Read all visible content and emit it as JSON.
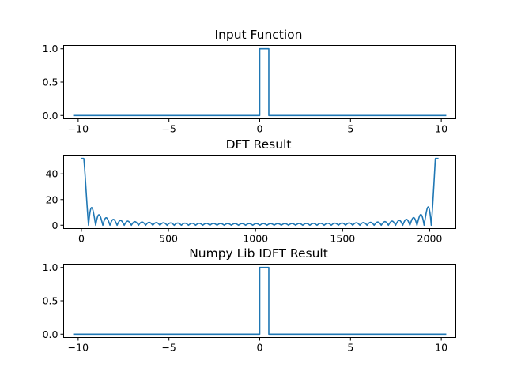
{
  "chart_data": [
    {
      "type": "line",
      "title": "Input Function",
      "xlabel": "",
      "ylabel": "",
      "xlim": [
        -10.8,
        10.8
      ],
      "ylim": [
        -0.05,
        1.05
      ],
      "xticks": [
        {
          "value": -10,
          "label": "−10"
        },
        {
          "value": -5,
          "label": "−5"
        },
        {
          "value": 0,
          "label": "0"
        },
        {
          "value": 5,
          "label": "5"
        },
        {
          "value": 10,
          "label": "10"
        }
      ],
      "yticks": [
        {
          "value": 0,
          "label": "0.0"
        },
        {
          "value": 0.5,
          "label": "0.5"
        },
        {
          "value": 1,
          "label": "1.0"
        }
      ],
      "grid": false,
      "x": [
        -10.24,
        0,
        0,
        0.5,
        0.5,
        10.24
      ],
      "y": [
        0,
        0,
        1,
        1,
        0,
        0
      ]
    },
    {
      "type": "line",
      "title": "DFT Result",
      "xlabel": "",
      "ylabel": "",
      "xlim": [
        -102,
        2150
      ],
      "ylim": [
        -2.6,
        54.6
      ],
      "xticks": [
        {
          "value": 0,
          "label": "0"
        },
        {
          "value": 500,
          "label": "500"
        },
        {
          "value": 1000,
          "label": "1000"
        },
        {
          "value": 1500,
          "label": "1500"
        },
        {
          "value": 2000,
          "label": "2000"
        }
      ],
      "yticks": [
        {
          "value": 0,
          "label": "0"
        },
        {
          "value": 20,
          "label": "20"
        },
        {
          "value": 40,
          "label": "40"
        }
      ],
      "grid": false,
      "n_points": 2048,
      "peak": 52,
      "lobe_spacing": 41
    },
    {
      "type": "line",
      "title": "Numpy Lib IDFT Result",
      "xlabel": "",
      "ylabel": "",
      "xlim": [
        -10.8,
        10.8
      ],
      "ylim": [
        -0.05,
        1.05
      ],
      "xticks": [
        {
          "value": -10,
          "label": "−10"
        },
        {
          "value": -5,
          "label": "−5"
        },
        {
          "value": 0,
          "label": "0"
        },
        {
          "value": 5,
          "label": "5"
        },
        {
          "value": 10,
          "label": "10"
        }
      ],
      "yticks": [
        {
          "value": 0,
          "label": "0.0"
        },
        {
          "value": 0.5,
          "label": "0.5"
        },
        {
          "value": 1,
          "label": "1.0"
        }
      ],
      "grid": false,
      "x": [
        -10.24,
        0,
        0,
        0.5,
        0.5,
        10.24
      ],
      "y": [
        0,
        0,
        1,
        1,
        0,
        0
      ]
    }
  ],
  "colors": {
    "series": "#1f77b4",
    "axes": "#000000",
    "background": "#ffffff"
  }
}
